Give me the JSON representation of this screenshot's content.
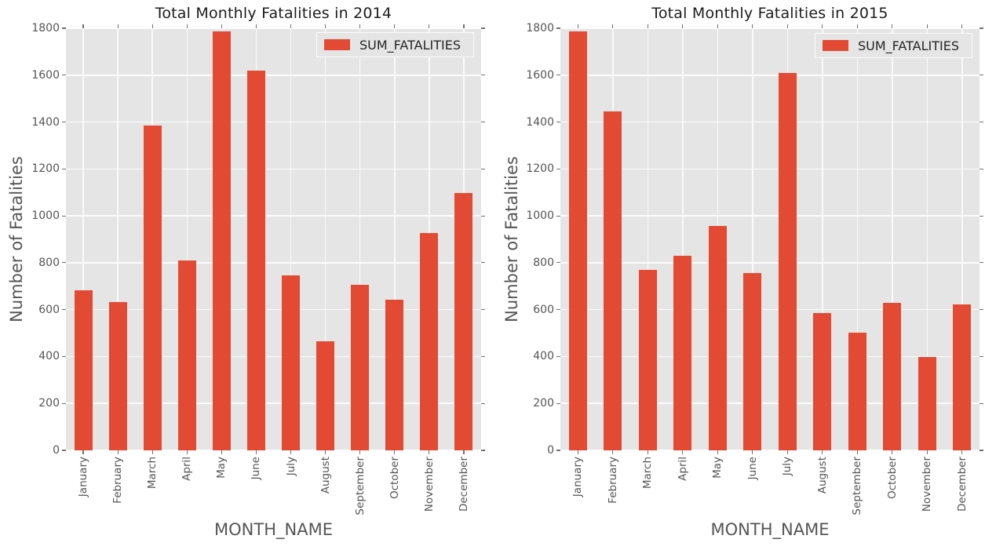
{
  "colors": {
    "bar": "#E24A33",
    "plot_background": "#E5E5E5",
    "grid": "#FFFFFF",
    "tick_label": "#555555",
    "axis_label": "#555555",
    "title": "#1C1C1C",
    "legend_background": "#E5E5E5"
  },
  "chart_data": [
    {
      "type": "bar",
      "title": "Total Monthly Fatalities in 2014",
      "xlabel": "MONTH_NAME",
      "ylabel": "Number of Fatalities",
      "categories": [
        "January",
        "February",
        "March",
        "April",
        "May",
        "June",
        "July",
        "August",
        "September",
        "October",
        "November",
        "December"
      ],
      "series": [
        {
          "name": "SUM_FATALITIES",
          "values": [
            683,
            633,
            1385,
            808,
            1785,
            1620,
            745,
            464,
            706,
            642,
            928,
            1096
          ]
        }
      ],
      "ylim": [
        0,
        1800
      ],
      "yticks": [
        0,
        200,
        400,
        600,
        800,
        1000,
        1200,
        1400,
        1600,
        1800
      ],
      "grid": true,
      "legend_position": "upper right",
      "bar_color": "#E24A33"
    },
    {
      "type": "bar",
      "title": "Total Monthly Fatalities in 2015",
      "xlabel": "MONTH_NAME",
      "ylabel": "Number of Fatalities",
      "categories": [
        "January",
        "February",
        "March",
        "April",
        "May",
        "June",
        "July",
        "August",
        "September",
        "October",
        "November",
        "December"
      ],
      "series": [
        {
          "name": "SUM_FATALITIES",
          "values": [
            1785,
            1445,
            770,
            829,
            958,
            757,
            1609,
            587,
            501,
            628,
            399,
            622
          ]
        }
      ],
      "ylim": [
        0,
        1800
      ],
      "yticks": [
        0,
        200,
        400,
        600,
        800,
        1000,
        1200,
        1400,
        1600,
        1800
      ],
      "grid": true,
      "legend_position": "upper right",
      "bar_color": "#E24A33"
    }
  ]
}
